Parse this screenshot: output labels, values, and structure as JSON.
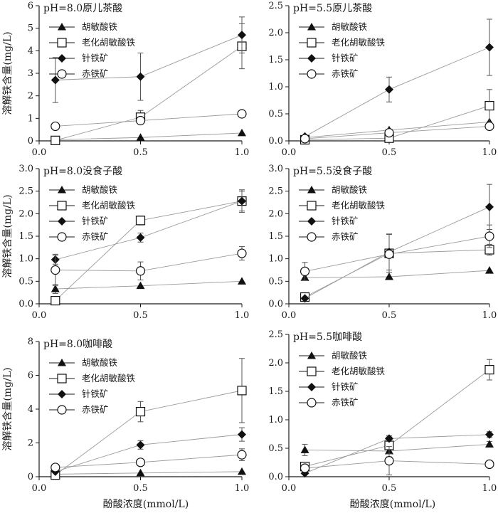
{
  "figure": {
    "ylabel": "溶解铁含量(mg/L)",
    "xlabel": "酚酸浓度(mmol/L)"
  },
  "legend_labels": [
    "胡敏酸铁",
    "老化胡敏酸铁",
    "针铁矿",
    "赤铁矿"
  ],
  "colors": {
    "axis": "#1a1a1a",
    "line": "#9a9a9a",
    "marker": "#111111"
  },
  "chart_data": [
    {
      "type": "line",
      "title": "pH=8.0原儿茶酸",
      "x": [
        0.08,
        0.5,
        1.0
      ],
      "xticks": [
        "0.0",
        "0.5",
        "1.0"
      ],
      "xlim": [
        0,
        1.0
      ],
      "ylim": [
        0,
        6
      ],
      "yticks": [
        "0",
        "1",
        "2",
        "3",
        "4",
        "5",
        "6"
      ],
      "ylabel": "溶解铁含量(mg/L)",
      "xlabel": "",
      "series": [
        {
          "name": "胡敏酸铁",
          "marker": "triangle",
          "values": [
            0.05,
            0.15,
            0.35
          ],
          "err": [
            0,
            0,
            0
          ]
        },
        {
          "name": "老化胡敏酸铁",
          "marker": "square",
          "values": [
            0.02,
            1.05,
            4.2
          ],
          "err": [
            0,
            0.3,
            1.0
          ]
        },
        {
          "name": "针铁矿",
          "marker": "diamond",
          "values": [
            2.7,
            2.85,
            4.7
          ],
          "err": [
            1.0,
            1.05,
            0.8
          ]
        },
        {
          "name": "赤铁矿",
          "marker": "circle",
          "values": [
            0.65,
            0.9,
            1.2
          ],
          "err": [
            0,
            0,
            0
          ]
        }
      ]
    },
    {
      "type": "line",
      "title": "pH=5.5原儿茶酸",
      "x": [
        0.08,
        0.5,
        1.0
      ],
      "xticks": [
        "0.0",
        "0.5",
        "1.0"
      ],
      "xlim": [
        0,
        1.0
      ],
      "ylim": [
        0,
        2.5
      ],
      "yticks": [
        "0.0",
        "0.5",
        "1.0",
        "1.5",
        "2.0",
        "2.5"
      ],
      "ylabel": "",
      "xlabel": "",
      "series": [
        {
          "name": "胡敏酸铁",
          "marker": "triangle",
          "values": [
            0.06,
            0.2,
            0.35
          ],
          "err": [
            0,
            0,
            0
          ]
        },
        {
          "name": "老化胡敏酸铁",
          "marker": "square",
          "values": [
            0.02,
            0.05,
            0.65
          ],
          "err": [
            0,
            0,
            0.3
          ]
        },
        {
          "name": "针铁矿",
          "marker": "diamond",
          "values": [
            0.08,
            0.95,
            1.73
          ],
          "err": [
            0,
            0.23,
            0.52
          ]
        },
        {
          "name": "赤铁矿",
          "marker": "circle",
          "values": [
            0.04,
            0.15,
            0.27
          ],
          "err": [
            0,
            0,
            0
          ]
        }
      ]
    },
    {
      "type": "line",
      "title": "pH=8.0没食子酸",
      "x": [
        0.08,
        0.5,
        1.0
      ],
      "xticks": [
        "0.0",
        "0.5",
        "1.0"
      ],
      "xlim": [
        0,
        1.0
      ],
      "ylim": [
        0,
        3.0
      ],
      "yticks": [
        "0.0",
        "0.5",
        "1.0",
        "1.5",
        "2.0",
        "2.5",
        "3.0"
      ],
      "ylabel": "溶解铁含量(mg/L)",
      "xlabel": "",
      "series": [
        {
          "name": "胡敏酸铁",
          "marker": "triangle",
          "values": [
            0.33,
            0.4,
            0.5
          ],
          "err": [
            0.1,
            0,
            0
          ]
        },
        {
          "name": "老化胡敏酸铁",
          "marker": "square",
          "values": [
            0.07,
            1.85,
            2.28
          ],
          "err": [
            0,
            0.1,
            0.22
          ]
        },
        {
          "name": "针铁矿",
          "marker": "diamond",
          "values": [
            0.98,
            1.47,
            2.28
          ],
          "err": [
            0.1,
            0.1,
            0.25
          ]
        },
        {
          "name": "赤铁矿",
          "marker": "circle",
          "values": [
            0.75,
            0.73,
            1.12
          ],
          "err": [
            0.35,
            0.2,
            0.15
          ]
        }
      ]
    },
    {
      "type": "line",
      "title": "pH=5.5没食子酸",
      "x": [
        0.08,
        0.5,
        1.0
      ],
      "xticks": [
        "0.0",
        "0.5",
        "1.0"
      ],
      "xlim": [
        0,
        1.0
      ],
      "ylim": [
        0,
        3.0
      ],
      "yticks": [
        "0.0",
        "0.5",
        "1.0",
        "1.5",
        "2.0",
        "2.5",
        "3.0"
      ],
      "ylabel": "",
      "xlabel": "",
      "series": [
        {
          "name": "胡敏酸铁",
          "marker": "triangle",
          "values": [
            0.58,
            0.6,
            0.74
          ],
          "err": [
            0,
            0,
            0
          ]
        },
        {
          "name": "老化胡敏酸铁",
          "marker": "square",
          "values": [
            0.15,
            1.12,
            1.2
          ],
          "err": [
            0,
            0.42,
            0.12
          ]
        },
        {
          "name": "针铁矿",
          "marker": "diamond",
          "values": [
            0.12,
            1.15,
            2.15
          ],
          "err": [
            0,
            0.4,
            0.5
          ]
        },
        {
          "name": "赤铁矿",
          "marker": "circle",
          "values": [
            0.72,
            1.1,
            1.5
          ],
          "err": [
            0.2,
            0,
            0.25
          ]
        }
      ]
    },
    {
      "type": "line",
      "title": "pH=8.0咖啡酸",
      "x": [
        0.08,
        0.5,
        1.0
      ],
      "xticks": [
        "0.0",
        "0.5",
        "1.0"
      ],
      "xlim": [
        0,
        1.0
      ],
      "ylim": [
        0,
        8
      ],
      "yticks": [
        "0",
        "2",
        "4",
        "6",
        "8"
      ],
      "ylabel": "溶解铁含量(mg/L)",
      "xlabel": "酚酸浓度(mmol/L)",
      "series": [
        {
          "name": "胡敏酸铁",
          "marker": "triangle",
          "values": [
            0.15,
            0.22,
            0.3
          ],
          "err": [
            0,
            0,
            0
          ]
        },
        {
          "name": "老化胡敏酸铁",
          "marker": "square",
          "values": [
            0.1,
            3.85,
            5.1
          ],
          "err": [
            0,
            0.6,
            1.9
          ]
        },
        {
          "name": "针铁矿",
          "marker": "diamond",
          "values": [
            0.3,
            1.88,
            2.5
          ],
          "err": [
            0,
            0.25,
            0.4
          ]
        },
        {
          "name": "赤铁矿",
          "marker": "circle",
          "values": [
            0.55,
            0.85,
            1.3
          ],
          "err": [
            0,
            0,
            0.35
          ]
        }
      ]
    },
    {
      "type": "line",
      "title": "pH=5.5咖啡酸",
      "x": [
        0.08,
        0.5,
        1.0
      ],
      "xticks": [
        "0.0",
        "0.5",
        "1.0"
      ],
      "xlim": [
        0,
        1.0
      ],
      "ylim": [
        0,
        2.5
      ],
      "yticks": [
        "0.0",
        "0.5",
        "1.0",
        "1.5",
        "2.0",
        "2.5"
      ],
      "ylabel": "",
      "xlabel": "酚酸浓度(mmol/L)",
      "series": [
        {
          "name": "胡敏酸铁",
          "marker": "triangle",
          "values": [
            0.47,
            0.45,
            0.57
          ],
          "err": [
            0.1,
            0.1,
            0.05
          ]
        },
        {
          "name": "老化胡敏酸铁",
          "marker": "square",
          "values": [
            0.18,
            0.55,
            1.88
          ],
          "err": [
            0.05,
            0.15,
            0.18
          ]
        },
        {
          "name": "针铁矿",
          "marker": "diamond",
          "values": [
            0.06,
            0.67,
            0.74
          ],
          "err": [
            0,
            0.05,
            0.05
          ]
        },
        {
          "name": "赤铁矿",
          "marker": "circle",
          "values": [
            0.15,
            0.28,
            0.22
          ],
          "err": [
            0,
            0.25,
            0
          ]
        }
      ]
    }
  ]
}
